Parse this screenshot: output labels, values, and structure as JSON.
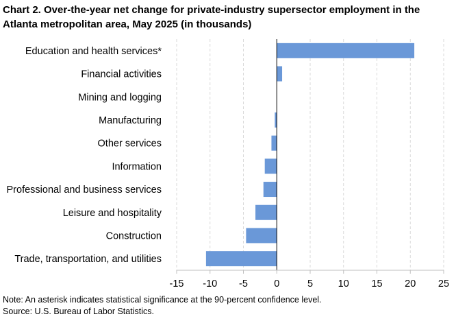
{
  "chart_data": {
    "type": "bar",
    "orientation": "horizontal",
    "title": "Chart 2. Over-the-year net change for private-industry supersector employment in the Atlanta metropolitan area, May 2025 (in thousands)",
    "xlabel": "",
    "ylabel": "",
    "xlim": [
      -15,
      25
    ],
    "xticks": [
      -15,
      -10,
      -5,
      0,
      5,
      10,
      15,
      20,
      25
    ],
    "grid": "vertical-dashed",
    "categories": [
      "Education and health services*",
      "Financial activities",
      "Mining and logging",
      "Manufacturing",
      "Other services",
      "Information",
      "Professional and business services",
      "Leisure and hospitality",
      "Construction",
      "Trade, transportation, and utilities"
    ],
    "values": [
      20.6,
      0.8,
      0.0,
      -0.3,
      -0.8,
      -1.8,
      -2.0,
      -3.2,
      -4.6,
      -10.6
    ],
    "bar_color": "#6a98d8"
  },
  "footnotes": {
    "note": "Note: An asterisk indicates statistical significance at the 90-percent confidence level.",
    "source": "Source: U.S. Bureau of Labor Statistics."
  }
}
